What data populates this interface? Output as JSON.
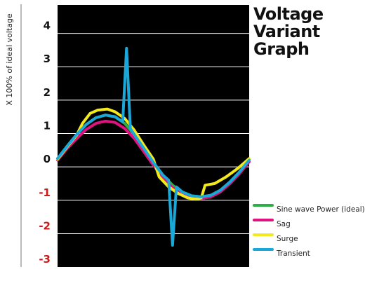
{
  "chart_data": {
    "type": "line",
    "title_lines": [
      "Voltage",
      "Variant",
      "Graph"
    ],
    "ylabel": "X 100% of ideal voltage",
    "xlabel": "",
    "ylim": [
      -3.25,
      4.6
    ],
    "xlim": [
      0,
      100
    ],
    "yticks": [
      {
        "label": "4",
        "value": 4,
        "color": "#111111"
      },
      {
        "label": "3",
        "value": 3,
        "color": "#111111"
      },
      {
        "label": "2",
        "value": 2,
        "color": "#111111"
      },
      {
        "label": "1",
        "value": 1,
        "color": "#111111"
      },
      {
        "label": "0",
        "value": 0,
        "color": "#111111"
      },
      {
        "label": "-1",
        "value": -1,
        "color": "#cc1a1a"
      },
      {
        "label": "-2",
        "value": -2,
        "color": "#cc1a1a"
      },
      {
        "label": "-3",
        "value": -3,
        "color": "#cc1a1a"
      }
    ],
    "grid": true,
    "legend_position": "bottom-right",
    "series": [
      {
        "name": "Sine wave Power (ideal)",
        "color": "#2fae45",
        "x": [
          0,
          5,
          10,
          15,
          20,
          25,
          30,
          35,
          40,
          45,
          50,
          55,
          60,
          65,
          70,
          75,
          80,
          85,
          90,
          95,
          100
        ],
        "y": [
          0.0,
          0.37,
          0.72,
          1.02,
          1.22,
          1.3,
          1.25,
          1.05,
          0.72,
          0.3,
          -0.12,
          -0.5,
          -0.8,
          -1.0,
          -1.12,
          -1.15,
          -1.1,
          -0.95,
          -0.7,
          -0.4,
          -0.05
        ]
      },
      {
        "name": "Sag",
        "color": "#e0127f",
        "x": [
          0,
          5,
          10,
          15,
          20,
          25,
          30,
          35,
          40,
          45,
          50,
          55,
          60,
          65,
          70,
          75,
          80,
          85,
          90,
          95,
          100
        ],
        "y": [
          -0.05,
          0.3,
          0.6,
          0.87,
          1.05,
          1.12,
          1.08,
          0.9,
          0.6,
          0.2,
          -0.2,
          -0.58,
          -0.88,
          -1.07,
          -1.18,
          -1.2,
          -1.15,
          -1.0,
          -0.75,
          -0.45,
          -0.1
        ]
      },
      {
        "name": "Surge",
        "color": "#f2ea1c",
        "x": [
          0,
          5,
          10,
          13,
          17,
          21,
          26,
          30,
          35,
          40,
          45,
          50,
          53,
          58,
          63,
          68,
          72,
          75,
          77,
          82,
          88,
          94,
          100
        ],
        "y": [
          -0.02,
          0.35,
          0.7,
          1.05,
          1.35,
          1.45,
          1.48,
          1.4,
          1.2,
          0.85,
          0.4,
          -0.02,
          -0.55,
          -0.85,
          -1.05,
          -1.18,
          -1.22,
          -1.18,
          -0.8,
          -0.75,
          -0.55,
          -0.3,
          0.0
        ]
      },
      {
        "name": "Transient",
        "color": "#1aa8d8",
        "x": [
          0,
          5,
          10,
          15,
          20,
          25,
          30,
          34,
          36,
          38,
          40,
          45,
          50,
          55,
          58,
          60,
          62,
          65,
          70,
          75,
          80,
          85,
          90,
          95,
          100
        ],
        "y": [
          0.0,
          0.37,
          0.72,
          1.02,
          1.22,
          1.3,
          1.25,
          1.1,
          3.3,
          0.9,
          0.72,
          0.3,
          -0.12,
          -0.5,
          -0.65,
          -2.6,
          -0.85,
          -1.0,
          -1.12,
          -1.15,
          -1.1,
          -0.95,
          -0.7,
          -0.4,
          -0.05
        ]
      }
    ]
  }
}
